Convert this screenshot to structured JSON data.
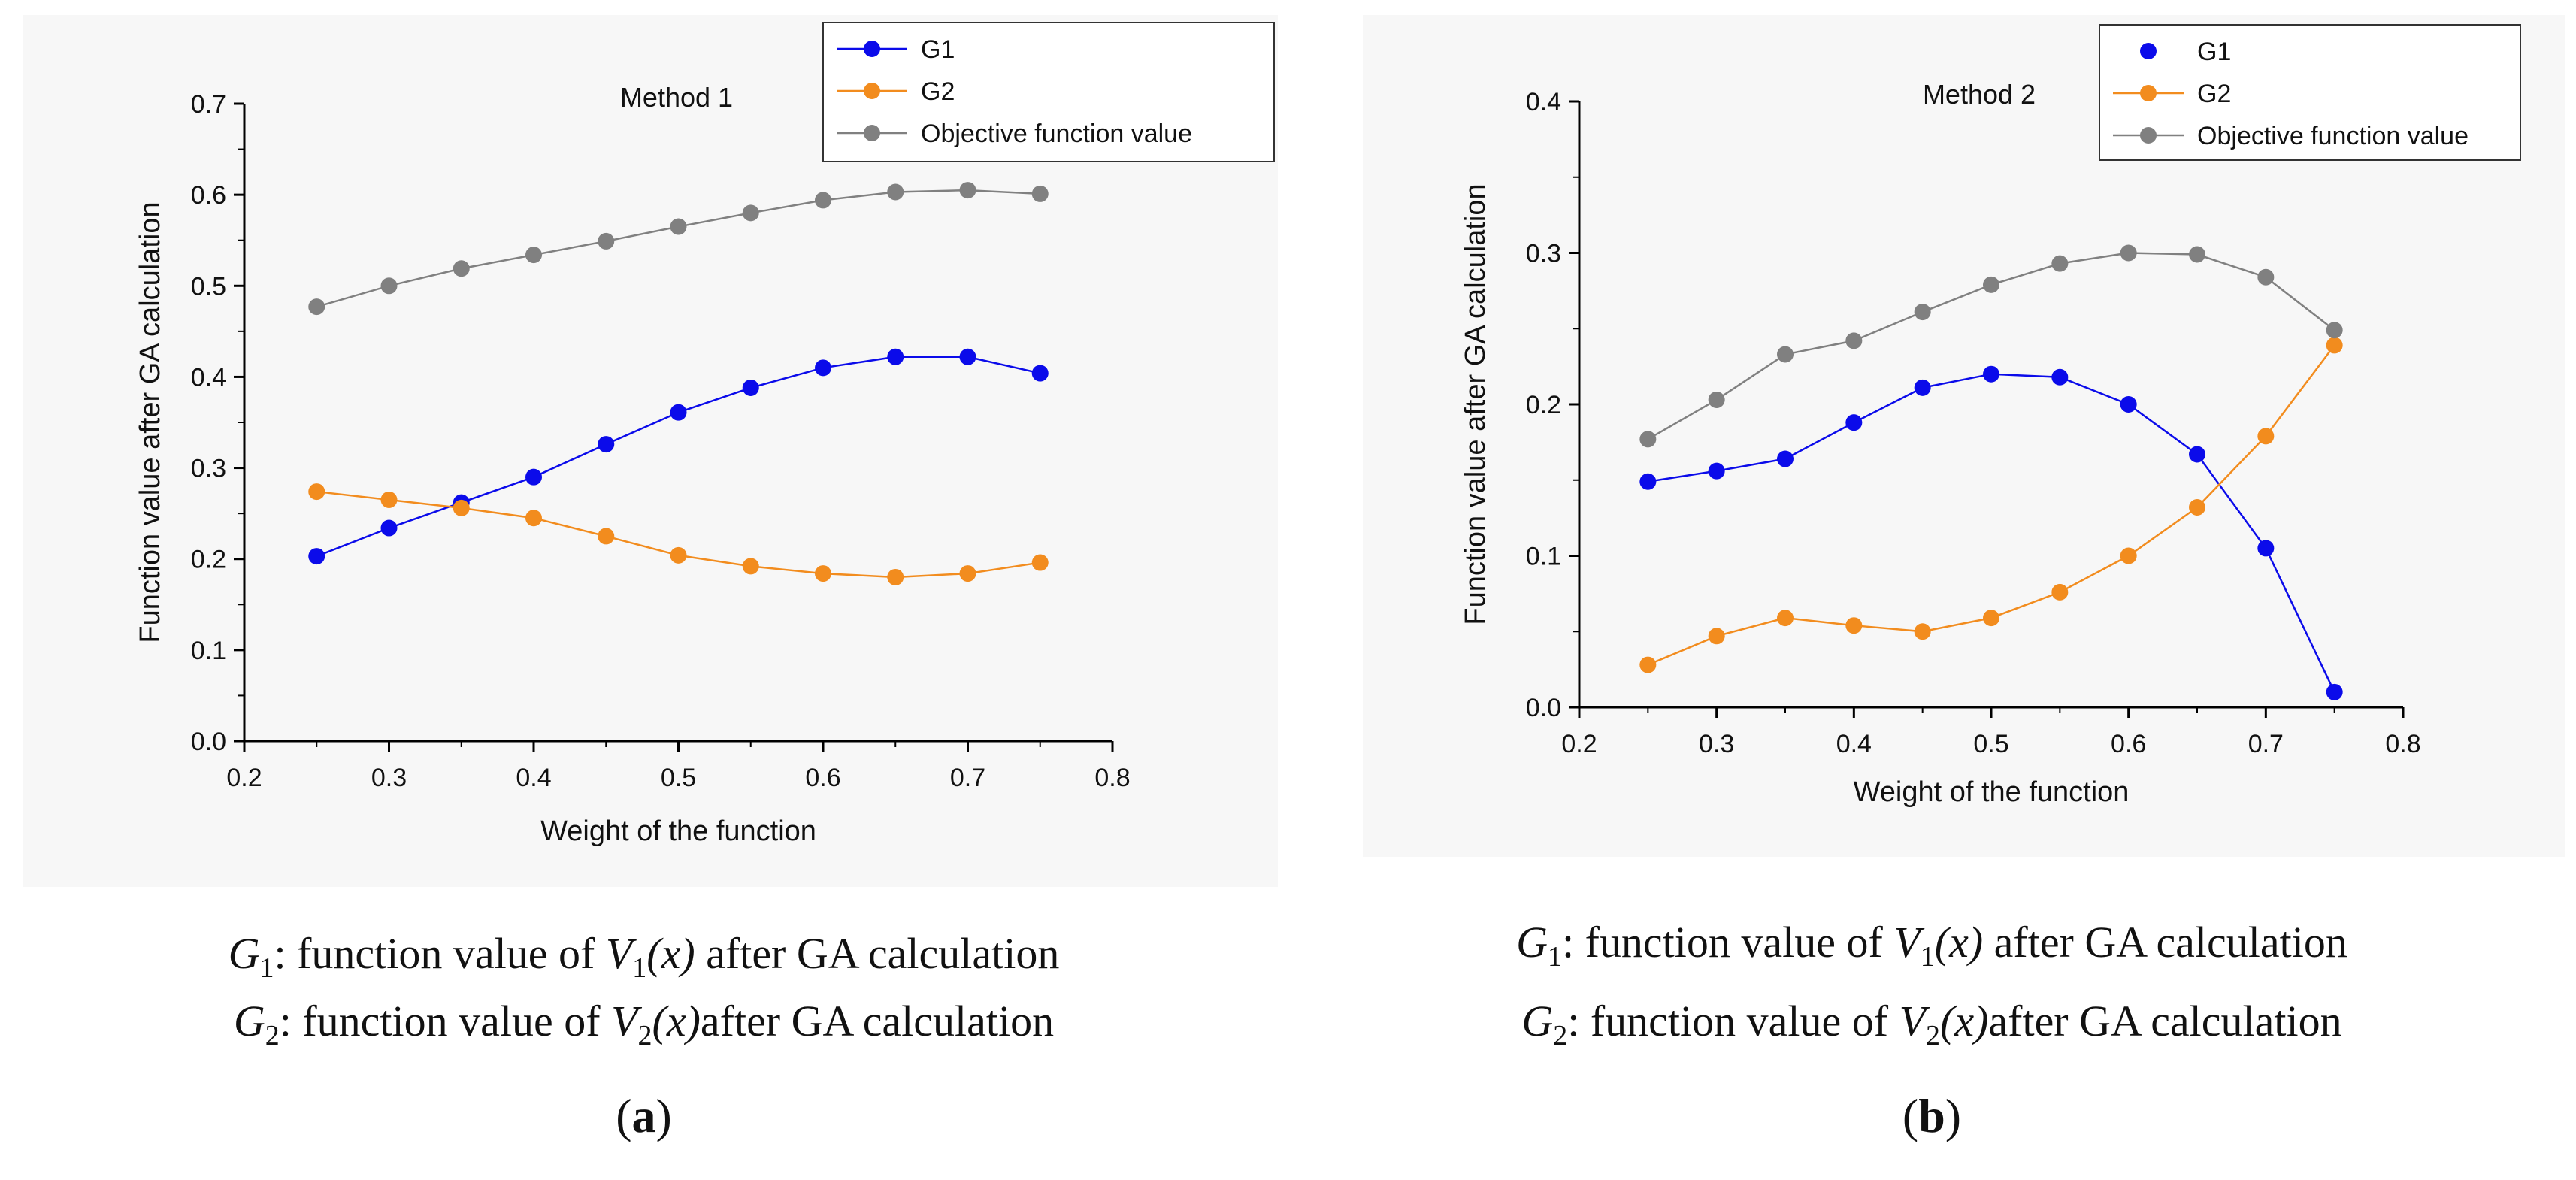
{
  "chart_data": [
    {
      "type": "line",
      "panel_label": "a",
      "title": "Method 1",
      "xlabel": "Weight of the function",
      "ylabel": "Function value after GA calculation",
      "xlim": [
        0.2,
        0.8
      ],
      "ylim": [
        0.0,
        0.7
      ],
      "xticks": [
        "0.2",
        "0.3",
        "0.4",
        "0.5",
        "0.6",
        "0.7",
        "0.8"
      ],
      "yticks": [
        "0.0",
        "0.1",
        "0.2",
        "0.3",
        "0.4",
        "0.5",
        "0.6",
        "0.7"
      ],
      "grid": false,
      "legend": "top-right",
      "x": [
        0.25,
        0.3,
        0.35,
        0.4,
        0.45,
        0.5,
        0.55,
        0.6,
        0.65,
        0.7,
        0.75
      ],
      "series": [
        {
          "name": "G1",
          "color": "#0b0bea",
          "line": true,
          "values": [
            0.203,
            0.234,
            0.262,
            0.29,
            0.326,
            0.361,
            0.388,
            0.41,
            0.422,
            0.422,
            0.404
          ]
        },
        {
          "name": "G2",
          "color": "#f28c1e",
          "line": true,
          "values": [
            0.274,
            0.265,
            0.256,
            0.245,
            0.225,
            0.204,
            0.192,
            0.184,
            0.18,
            0.184,
            0.196
          ]
        },
        {
          "name": "Objective function value",
          "color": "#808080",
          "line": true,
          "values": [
            0.477,
            0.5,
            0.519,
            0.534,
            0.549,
            0.565,
            0.58,
            0.594,
            0.603,
            0.605,
            0.601
          ]
        }
      ],
      "caption_lines": [
        {
          "sym": "G",
          "sub": "1",
          "text": ": function value of ",
          "var": "V",
          "var_sub": "1",
          "arg": "(x)",
          "rest": "  after GA calculation"
        },
        {
          "sym": "G",
          "sub": "2",
          "text": ": function value of ",
          "var": "V",
          "var_sub": "2",
          "arg": "(x)",
          "rest": "after GA calculation"
        }
      ]
    },
    {
      "type": "line",
      "panel_label": "b",
      "title": "Method 2",
      "xlabel": "Weight of the function",
      "ylabel": "Function value after GA calculation",
      "xlim": [
        0.2,
        0.8
      ],
      "ylim": [
        0.0,
        0.4
      ],
      "xticks": [
        "0.2",
        "0.3",
        "0.4",
        "0.5",
        "0.6",
        "0.7",
        "0.8"
      ],
      "yticks": [
        "0.0",
        "0.1",
        "0.2",
        "0.3",
        "0.4"
      ],
      "grid": false,
      "legend": "top-right",
      "x": [
        0.25,
        0.3,
        0.35,
        0.4,
        0.45,
        0.5,
        0.55,
        0.6,
        0.65,
        0.7,
        0.75
      ],
      "series": [
        {
          "name": "G1",
          "color": "#0b0bea",
          "line": true,
          "legend_line": false,
          "values": [
            0.149,
            0.156,
            0.164,
            0.188,
            0.211,
            0.22,
            0.218,
            0.2,
            0.167,
            0.105,
            0.01
          ]
        },
        {
          "name": "G2",
          "color": "#f28c1e",
          "line": true,
          "legend_line": true,
          "values": [
            0.028,
            0.047,
            0.059,
            0.054,
            0.05,
            0.059,
            0.076,
            0.1,
            0.132,
            0.179,
            0.239
          ]
        },
        {
          "name": "Objective function value",
          "color": "#808080",
          "line": true,
          "legend_line": true,
          "values": [
            0.177,
            0.203,
            0.233,
            0.242,
            0.261,
            0.279,
            0.293,
            0.3,
            0.299,
            0.284,
            0.249
          ]
        }
      ],
      "caption_lines": [
        {
          "sym": "G",
          "sub": "1",
          "text": ": function value of ",
          "var": "V",
          "var_sub": "1",
          "arg": "(x)",
          "rest": "  after GA calculation"
        },
        {
          "sym": "G",
          "sub": "2",
          "text": ": function value of ",
          "var": "V",
          "var_sub": "2",
          "arg": "(x)",
          "rest": "after GA calculation"
        }
      ]
    }
  ]
}
